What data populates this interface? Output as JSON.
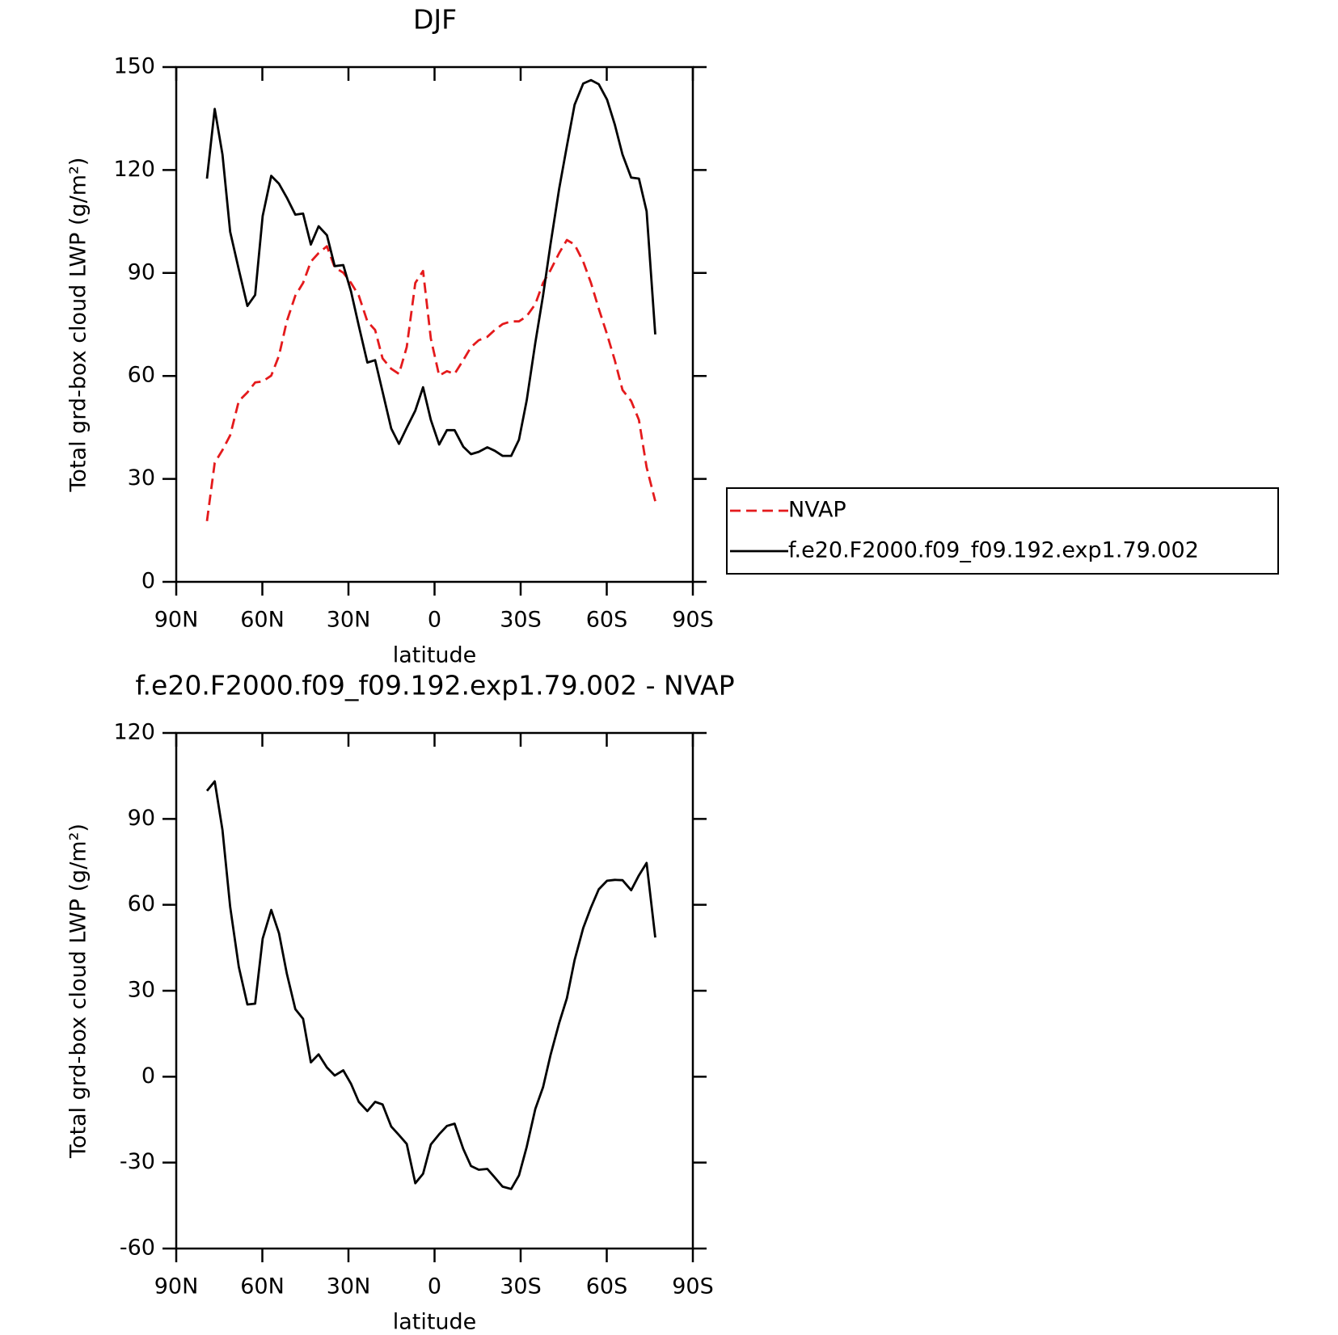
{
  "chart_data": [
    {
      "type": "line",
      "title": "DJF",
      "x_label": "latitude",
      "y_label": "Total grd-box cloud LWP (g/m²)",
      "x": [
        79.3,
        76.6,
        73.9,
        71.2,
        68.2,
        65.2,
        62.5,
        59.9,
        56.9,
        54.2,
        51.5,
        48.5,
        45.8,
        43.1,
        40.4,
        37.5,
        34.8,
        31.8,
        29.1,
        26.4,
        23.4,
        20.7,
        18.1,
        15.1,
        12.4,
        9.7,
        6.7,
        4.0,
        1.3,
        -1.6,
        -4.3,
        -7.0,
        -10.0,
        -12.7,
        -15.4,
        -18.4,
        -21.0,
        -23.7,
        -26.7,
        -29.4,
        -32.1,
        -35.1,
        -37.8,
        -40.4,
        -43.4,
        -46.1,
        -48.8,
        -51.8,
        -54.5,
        -57.2,
        -60.1,
        -62.8,
        -65.5,
        -68.5,
        -71.2,
        -73.9,
        -76.9
      ],
      "series": [
        {
          "name": "NVAP",
          "color": "#e41a1c",
          "dashed": true,
          "values": [
            17.7,
            34.7,
            38.4,
            42.7,
            52.7,
            55.2,
            58.1,
            58.4,
            60.1,
            65.9,
            75.9,
            83.4,
            87.1,
            93.3,
            95.8,
            97.8,
            91.6,
            90.1,
            87.1,
            83.4,
            75.9,
            73.4,
            65.1,
            62.1,
            60.6,
            68.4,
            87.1,
            90.6,
            70.9,
            60.1,
            61.4,
            60.6,
            64.6,
            68.4,
            70.4,
            71.4,
            73.4,
            75.1,
            75.9,
            75.9,
            77.4,
            80.9,
            87.1,
            90.8,
            95.8,
            99.6,
            98.3,
            93.3,
            87.1,
            79.6,
            72.1,
            64.6,
            55.9,
            52.7,
            47.2,
            33.4,
            23.5
          ]
        },
        {
          "name": "f.e20.F2000.f09_f09.192.exp1.79.002",
          "color": "#000000",
          "dashed": false,
          "values": [
            117.5,
            137.8,
            124.5,
            102,
            91,
            80.4,
            83.6,
            106.6,
            118.3,
            116,
            112,
            107,
            107.3,
            98.3,
            103.6,
            101,
            92,
            92.3,
            84.6,
            74.6,
            63.9,
            64.6,
            55.4,
            44.7,
            40.2,
            44.9,
            49.9,
            56.7,
            47.2,
            40,
            44.2,
            44.2,
            39.4,
            37.2,
            37.9,
            39.2,
            38.2,
            36.7,
            36.7,
            41.4,
            52.9,
            69.6,
            83.4,
            98.3,
            114.5,
            127,
            139,
            145.2,
            146.2,
            145,
            140.5,
            133.3,
            124.5,
            117.8,
            117.5,
            108,
            72.1
          ]
        }
      ],
      "xlim": [
        90,
        -90
      ],
      "xticks": [
        {
          "value": 90,
          "label": "90N"
        },
        {
          "value": 60,
          "label": "60N"
        },
        {
          "value": 30,
          "label": "30N"
        },
        0,
        {
          "value": -30,
          "label": "30S"
        },
        {
          "value": -60,
          "label": "60S"
        },
        {
          "value": -90,
          "label": "90S"
        }
      ],
      "ylim": [
        0,
        150
      ],
      "yticks": [
        0,
        30,
        60,
        90,
        120,
        150
      ],
      "legend": "right"
    },
    {
      "type": "line",
      "title": "f.e20.F2000.f09_f09.192.exp1.79.002 - NVAP",
      "x_label": "latitude",
      "y_label": "Total grd-box cloud LWP (g/m²)",
      "x": [
        79.3,
        76.6,
        73.9,
        71.2,
        68.2,
        65.2,
        62.5,
        59.9,
        56.9,
        54.2,
        51.5,
        48.5,
        45.8,
        43.1,
        40.4,
        37.5,
        34.8,
        31.8,
        29.1,
        26.4,
        23.4,
        20.7,
        18.1,
        15.1,
        12.4,
        9.7,
        6.7,
        4.0,
        1.3,
        -1.6,
        -4.3,
        -7.0,
        -10.0,
        -12.7,
        -15.4,
        -18.4,
        -21.0,
        -23.7,
        -26.7,
        -29.4,
        -32.1,
        -35.1,
        -37.8,
        -40.4,
        -43.4,
        -46.1,
        -48.8,
        -51.8,
        -54.5,
        -57.2,
        -60.1,
        -62.8,
        -65.5,
        -68.5,
        -71.2,
        -73.9,
        -76.9
      ],
      "series": [
        {
          "color": "#000000",
          "dashed": false,
          "values": [
            99.8,
            103.1,
            86.1,
            59.3,
            38.3,
            25.2,
            25.5,
            48.2,
            58.2,
            50.1,
            36.1,
            23.6,
            20.2,
            5.0,
            7.8,
            3.2,
            0.4,
            2.2,
            -2.5,
            -8.8,
            -12.0,
            -8.8,
            -9.7,
            -17.4,
            -20.4,
            -23.5,
            -37.2,
            -33.9,
            -23.7,
            -20.1,
            -17.2,
            -16.4,
            -25.2,
            -31.2,
            -32.5,
            -32.2,
            -35.2,
            -38.4,
            -39.2,
            -34.5,
            -24.5,
            -11.3,
            -3.7,
            7.5,
            18.7,
            27.4,
            40.7,
            51.9,
            59.1,
            65.4,
            68.4,
            68.7,
            68.6,
            65.1,
            70.3,
            74.6,
            48.6
          ]
        }
      ],
      "xlim": [
        90,
        -90
      ],
      "xticks": [
        {
          "value": 90,
          "label": "90N"
        },
        {
          "value": 60,
          "label": "60N"
        },
        {
          "value": 30,
          "label": "30N"
        },
        0,
        {
          "value": -30,
          "label": "30S"
        },
        {
          "value": -60,
          "label": "60S"
        },
        {
          "value": -90,
          "label": "90S"
        }
      ],
      "ylim": [
        -60,
        120
      ],
      "yticks": [
        -60,
        -30,
        0,
        30,
        60,
        90,
        120
      ]
    }
  ]
}
